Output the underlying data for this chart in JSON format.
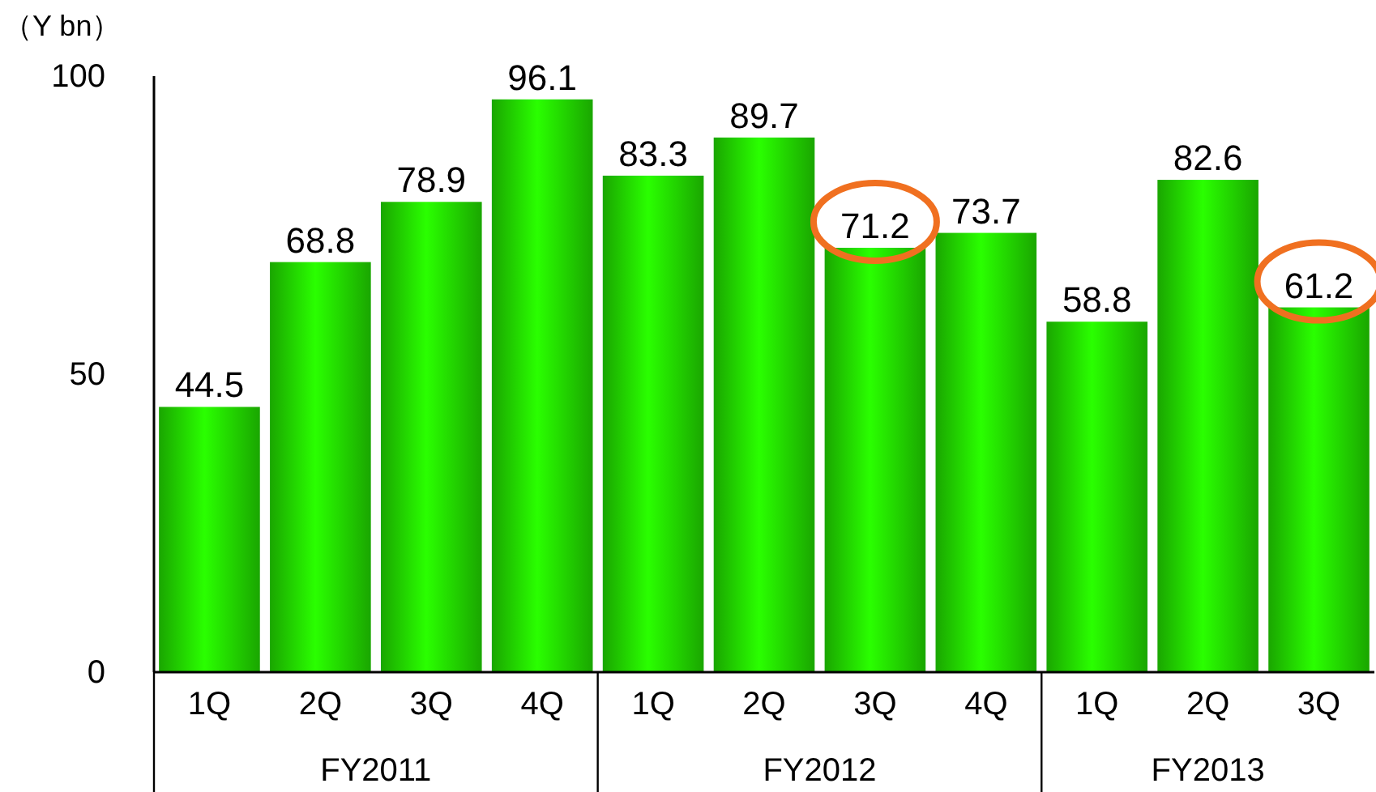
{
  "chart_data": {
    "type": "bar",
    "ylabel": "（Y bn）",
    "categories": [
      "1Q",
      "2Q",
      "3Q",
      "4Q",
      "1Q",
      "2Q",
      "3Q",
      "4Q",
      "1Q",
      "2Q",
      "3Q"
    ],
    "values": [
      44.5,
      68.8,
      78.9,
      96.1,
      83.3,
      89.7,
      71.2,
      73.7,
      58.8,
      82.6,
      61.2
    ],
    "color": "#22dd00",
    "ylim": [
      0,
      100
    ],
    "yticks": [
      0,
      50,
      100
    ],
    "data_labels": true,
    "annotations": [
      "FY2011",
      "FY2012",
      "FY2013"
    ]
  }
}
